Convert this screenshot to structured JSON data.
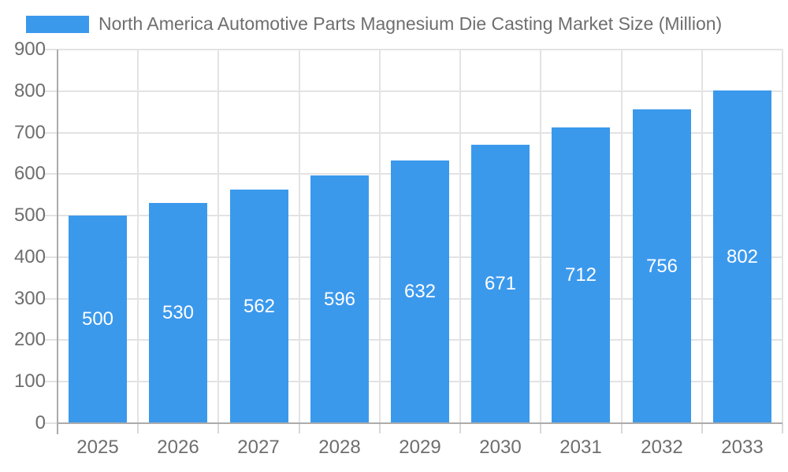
{
  "chart_data": {
    "type": "bar",
    "title": "North America Automotive Parts Magnesium Die Casting Market Size (Million)",
    "categories": [
      "2025",
      "2026",
      "2027",
      "2028",
      "2029",
      "2030",
      "2031",
      "2032",
      "2033"
    ],
    "values": [
      500,
      530,
      562,
      596,
      632,
      671,
      712,
      756,
      802
    ],
    "xlabel": "",
    "ylabel": "",
    "ylim": [
      0,
      900
    ],
    "yticks": [
      0,
      100,
      200,
      300,
      400,
      500,
      600,
      700,
      800,
      900
    ],
    "grid": true,
    "legend_position": "top-left",
    "bar_labels_inside": true,
    "colors": {
      "bar": "#3B99EC",
      "bar_label": "#FFFFFF",
      "text": "#6E6E6E",
      "axis_line": "#ABABAB",
      "grid": "#E3E3E3",
      "x_tick": "#D8D8D8"
    }
  }
}
